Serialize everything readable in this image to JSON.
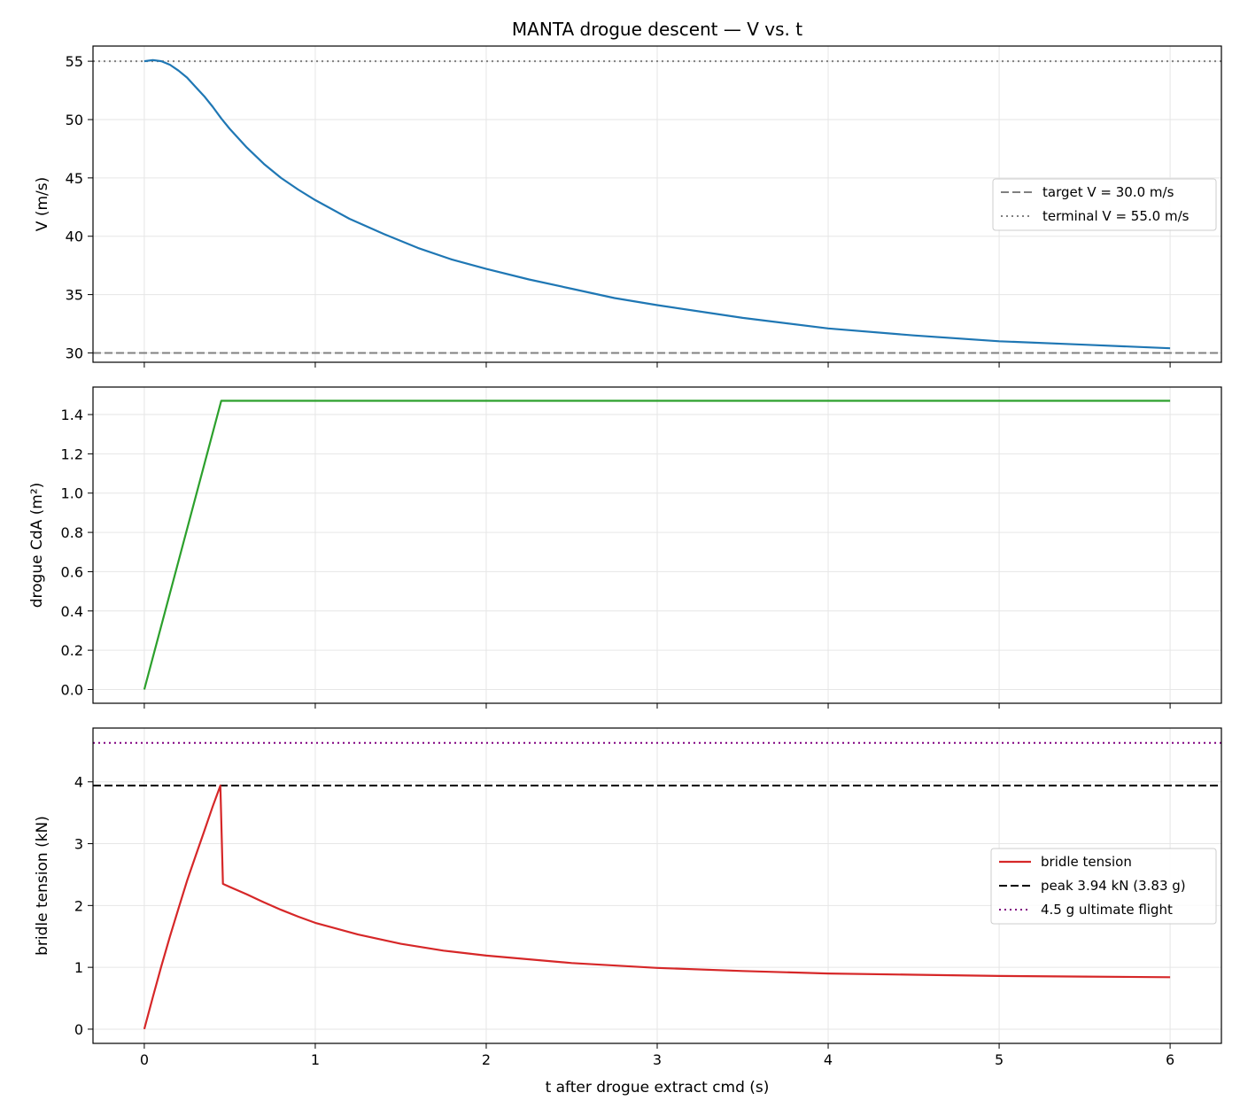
{
  "title": "MANTA drogue descent — V vs. t",
  "xlabel": "t after drogue extract cmd (s)",
  "colors": {
    "velocity": "#1f77b4",
    "cda": "#2ca02c",
    "tension": "#d62728",
    "reference": "#808080",
    "peak": "#000000",
    "ultimate": "#800080",
    "grid": "#e6e6e6"
  },
  "chart_data": [
    {
      "type": "line",
      "panel": "velocity",
      "ylabel": "V (m/s)",
      "xlim": [
        -0.3,
        6.3
      ],
      "ylim": [
        29.2,
        56.3
      ],
      "xticks": [
        0,
        1,
        2,
        3,
        4,
        5,
        6
      ],
      "yticks": [
        30,
        35,
        40,
        45,
        50,
        55
      ],
      "series": [
        {
          "x": [
            0,
            0.05,
            0.1,
            0.15,
            0.2,
            0.25,
            0.3,
            0.35,
            0.4,
            0.45,
            0.5,
            0.6,
            0.7,
            0.8,
            0.9,
            1.0,
            1.2,
            1.4,
            1.6,
            1.8,
            2.0,
            2.25,
            2.5,
            2.75,
            3.0,
            3.5,
            4.0,
            4.5,
            5.0,
            5.5,
            6.0
          ],
          "y": [
            55.0,
            55.1,
            55.0,
            54.7,
            54.2,
            53.6,
            52.8,
            52.0,
            51.1,
            50.1,
            49.2,
            47.6,
            46.2,
            45.0,
            44.0,
            43.1,
            41.5,
            40.2,
            39.0,
            38.0,
            37.2,
            36.3,
            35.5,
            34.7,
            34.1,
            33.0,
            32.1,
            31.5,
            31.0,
            30.7,
            30.4
          ]
        }
      ],
      "references": [
        {
          "label": "target V = 30.0 m/s",
          "y": 30.0,
          "style": "dashed"
        },
        {
          "label": "terminal V = 55.0 m/s",
          "y": 55.0,
          "style": "dotted"
        }
      ],
      "legend": "center-right"
    },
    {
      "type": "line",
      "panel": "cda",
      "ylabel": "drogue CdA (m²)",
      "xlim": [
        -0.3,
        6.3
      ],
      "ylim": [
        -0.07,
        1.54
      ],
      "xticks": [
        0,
        1,
        2,
        3,
        4,
        5,
        6
      ],
      "yticks": [
        "0.0",
        "0.2",
        "0.4",
        "0.6",
        "0.8",
        "1.0",
        "1.2",
        "1.4"
      ],
      "series": [
        {
          "x": [
            0,
            0.45,
            6.0
          ],
          "y": [
            0.0,
            1.47,
            1.47
          ]
        }
      ]
    },
    {
      "type": "line",
      "panel": "tension",
      "ylabel": "bridle tension (kN)",
      "xlim": [
        -0.3,
        6.3
      ],
      "ylim": [
        -0.23,
        4.87
      ],
      "xticks": [
        0,
        1,
        2,
        3,
        4,
        5,
        6
      ],
      "yticks": [
        0,
        1,
        2,
        3,
        4
      ],
      "series": [
        {
          "name": "bridle tension",
          "x": [
            0,
            0.05,
            0.1,
            0.15,
            0.2,
            0.25,
            0.3,
            0.35,
            0.4,
            0.44,
            0.445,
            0.46,
            0.5,
            0.6,
            0.7,
            0.8,
            0.9,
            1.0,
            1.25,
            1.5,
            1.75,
            2.0,
            2.5,
            3.0,
            3.5,
            4.0,
            4.5,
            5.0,
            5.5,
            6.0
          ],
          "y": [
            0.0,
            0.52,
            1.02,
            1.5,
            1.95,
            2.4,
            2.8,
            3.2,
            3.6,
            3.9,
            3.94,
            2.35,
            2.3,
            2.18,
            2.05,
            1.93,
            1.82,
            1.72,
            1.53,
            1.38,
            1.27,
            1.19,
            1.07,
            0.99,
            0.94,
            0.9,
            0.88,
            0.86,
            0.85,
            0.84
          ]
        }
      ],
      "references": [
        {
          "label": "peak 3.94 kN (3.83 g)",
          "y": 3.94,
          "style": "dashed"
        },
        {
          "label": "4.5 g ultimate flight",
          "y": 4.63,
          "style": "dotted"
        }
      ],
      "legend": "center-right"
    }
  ]
}
